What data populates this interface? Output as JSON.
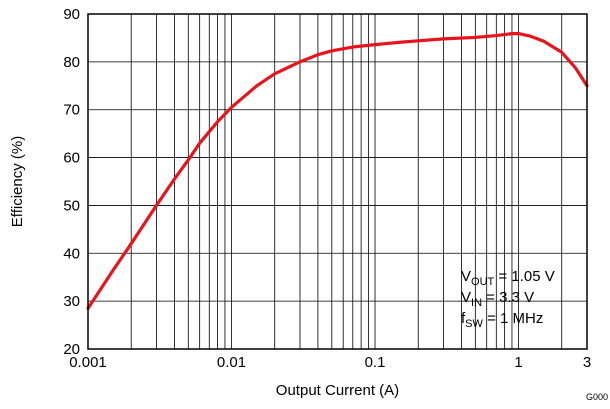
{
  "chart_data": {
    "type": "line",
    "xlabel": "Output Current (A)",
    "ylabel": "Efficiency (%)",
    "xscale": "log",
    "xlim": [
      0.001,
      3
    ],
    "ylim": [
      20,
      90
    ],
    "x_ticks": [
      {
        "value": 0.001,
        "label": "0.001"
      },
      {
        "value": 0.01,
        "label": "0.01"
      },
      {
        "value": 0.1,
        "label": "0.1"
      },
      {
        "value": 1,
        "label": "1"
      },
      {
        "value": 3,
        "label": "3"
      }
    ],
    "y_ticks": [
      {
        "value": 20,
        "label": "20"
      },
      {
        "value": 30,
        "label": "30"
      },
      {
        "value": 40,
        "label": "40"
      },
      {
        "value": 50,
        "label": "50"
      },
      {
        "value": 60,
        "label": "60"
      },
      {
        "value": 70,
        "label": "70"
      },
      {
        "value": 80,
        "label": "80"
      },
      {
        "value": 90,
        "label": "90"
      }
    ],
    "grid": true,
    "series_color": "#e8141c",
    "series": [
      {
        "x": [
          0.001,
          0.0015,
          0.002,
          0.003,
          0.004,
          0.005,
          0.006,
          0.008,
          0.01,
          0.015,
          0.02,
          0.03,
          0.04,
          0.05,
          0.07,
          0.1,
          0.15,
          0.2,
          0.3,
          0.5,
          0.7,
          0.8,
          0.9,
          1.0,
          1.2,
          1.5,
          2.0,
          2.5,
          3.0
        ],
        "y": [
          28.5,
          36.5,
          42.0,
          50.0,
          55.5,
          59.5,
          63.0,
          67.5,
          70.5,
          75.0,
          77.5,
          80.0,
          81.5,
          82.3,
          83.1,
          83.6,
          84.1,
          84.4,
          84.8,
          85.1,
          85.5,
          85.7,
          85.9,
          85.9,
          85.4,
          84.3,
          82.0,
          78.7,
          75.0
        ]
      }
    ],
    "annotations": [
      {
        "main": "V",
        "sub": "OUT",
        "rest": " = 1.05 V"
      },
      {
        "main": "V",
        "sub": "IN",
        "rest": " = 3.3 V"
      },
      {
        "main": "f",
        "sub": "SW",
        "rest": " = 1 MHz"
      }
    ],
    "figure_id": "G000"
  }
}
